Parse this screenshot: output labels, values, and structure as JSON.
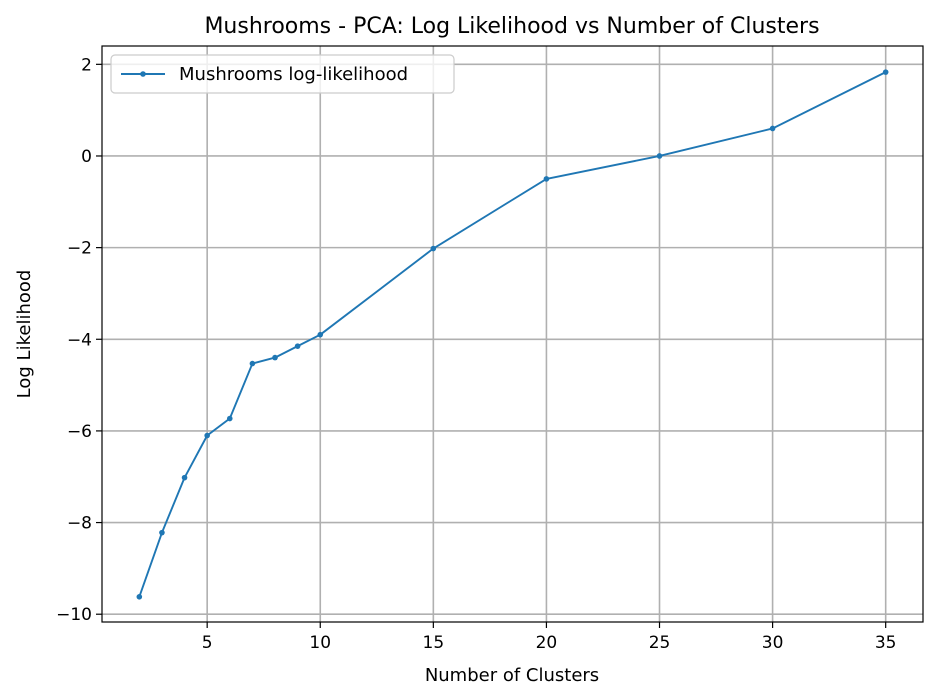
{
  "chart_data": {
    "type": "line",
    "title": "Mushrooms - PCA: Log Likelihood vs Number of Clusters",
    "xlabel": "Number of Clusters",
    "ylabel": "Log Likelihood",
    "xlim": [
      0.35,
      36.65
    ],
    "ylim": [
      -10.17,
      2.4
    ],
    "xticks": [
      5,
      10,
      15,
      20,
      25,
      30,
      35
    ],
    "yticks": [
      -10,
      -8,
      -6,
      -4,
      -2,
      0,
      2
    ],
    "xtick_labels": [
      "5",
      "10",
      "15",
      "20",
      "25",
      "30",
      "35"
    ],
    "ytick_labels": [
      "−10",
      "−8",
      "−6",
      "−4",
      "−2",
      "0",
      "2"
    ],
    "grid": true,
    "legend_position": "top-left",
    "series": [
      {
        "name": "Mushrooms log-likelihood",
        "color": "#1f77b4",
        "marker": "dot",
        "x": [
          2,
          3,
          4,
          5,
          6,
          7,
          8,
          9,
          10,
          15,
          20,
          25,
          30,
          35
        ],
        "y": [
          -9.62,
          -8.22,
          -7.02,
          -6.1,
          -5.73,
          -4.53,
          -4.4,
          -4.15,
          -3.9,
          -2.02,
          -0.5,
          0.0,
          0.6,
          1.83
        ]
      }
    ]
  }
}
